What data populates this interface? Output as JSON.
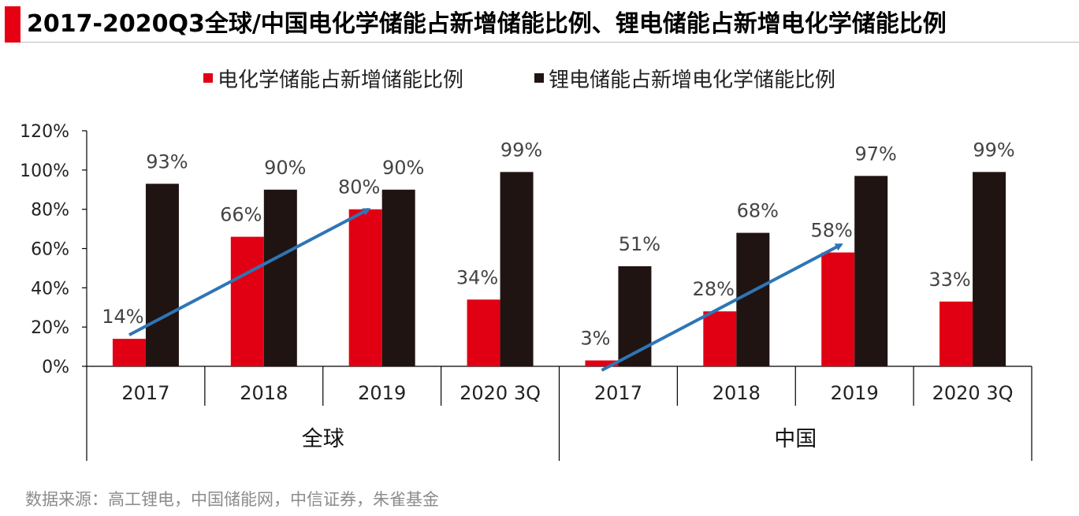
{
  "title": "2017-2020Q3全球/中国电化学储能占新增储能比例、锂电储能占新增电化学储能比例",
  "source": "数据来源：高工锂电，中国储能网，中信证券，朱雀基金",
  "colors": {
    "accent": "#e60012",
    "series1": "#e10013",
    "series2": "#1f1412",
    "trend_arrow": "#2e75b6"
  },
  "chart_data": {
    "type": "bar",
    "title": "2017-2020Q3全球/中国电化学储能占新增储能比例、锂电储能占新增电化学储能比例",
    "ylim": [
      0,
      120
    ],
    "y_ticks": [
      "0%",
      "20%",
      "40%",
      "60%",
      "80%",
      "100%",
      "120%"
    ],
    "y_tick_values": [
      0,
      20,
      40,
      60,
      80,
      100,
      120
    ],
    "categories": [
      "2017",
      "2018",
      "2019",
      "2020 3Q",
      "2017",
      "2018",
      "2019",
      "2020 3Q"
    ],
    "groups": [
      {
        "label": "全球",
        "categories": [
          "2017",
          "2018",
          "2019",
          "2020 3Q"
        ]
      },
      {
        "label": "中国",
        "categories": [
          "2017",
          "2018",
          "2019",
          "2020 3Q"
        ]
      }
    ],
    "series": [
      {
        "name": "电化学储能占新增储能比例",
        "values": [
          14,
          66,
          80,
          34,
          3,
          28,
          58,
          33
        ],
        "labels": [
          "14%",
          "66%",
          "80%",
          "34%",
          "3%",
          "28%",
          "58%",
          "33%"
        ]
      },
      {
        "name": "锂电储能占新增电化学储能比例",
        "values": [
          93,
          90,
          90,
          99,
          51,
          68,
          97,
          99
        ],
        "labels": [
          "93%",
          "90%",
          "90%",
          "99%",
          "51%",
          "68%",
          "97%",
          "99%"
        ]
      }
    ],
    "legend_position": "top-center",
    "grid": false,
    "annotations": [
      {
        "type": "trend-arrow",
        "group": "全球",
        "from": {
          "category": 0,
          "value": 16
        },
        "to": {
          "category": 2,
          "value": 80
        }
      },
      {
        "type": "trend-arrow",
        "group": "中国",
        "from": {
          "category": 4,
          "value": -2
        },
        "to": {
          "category": 6,
          "value": 62
        }
      }
    ]
  }
}
